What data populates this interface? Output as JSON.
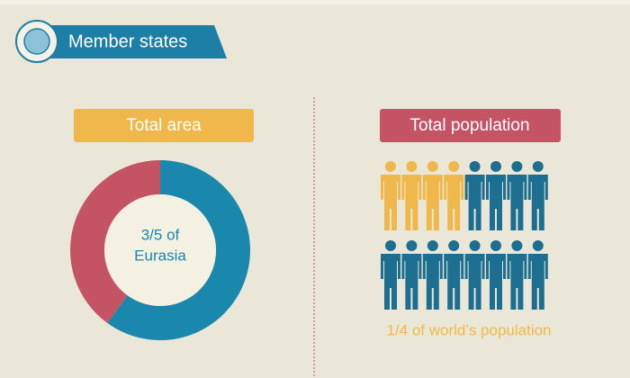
{
  "header": {
    "title": "Member states"
  },
  "area": {
    "title": "Total area",
    "label_lines": [
      "3/5 of",
      "Eurasia"
    ],
    "values": [
      60,
      40
    ],
    "colors": [
      "#1a87ad",
      "#c45463"
    ]
  },
  "population": {
    "title": "Total population",
    "label": "1/4 of world’s population",
    "counts": [
      4,
      12
    ],
    "colors": [
      "#f0b84b",
      "#1d6f91"
    ]
  }
}
